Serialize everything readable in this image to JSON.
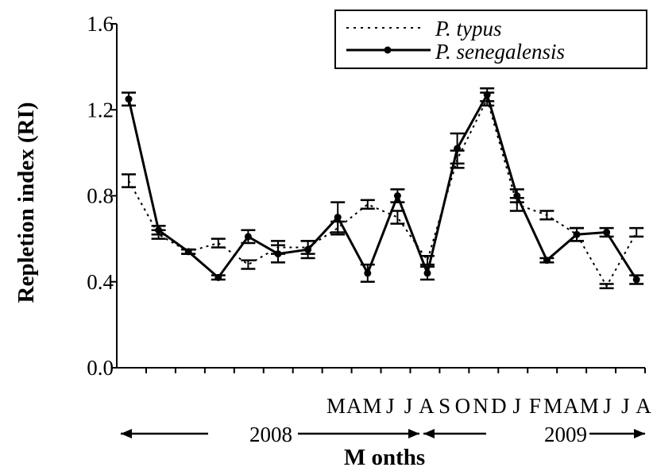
{
  "chart_data": {
    "type": "line",
    "title": "",
    "xlabel": "M onths",
    "ylabel": "Repletion index (RI)",
    "ylim": [
      0.0,
      1.6
    ],
    "yticks": [
      "0.0",
      "0.4",
      "0.8",
      "1.2",
      "1.6"
    ],
    "month_labels": [
      "M",
      "A",
      "M",
      "J",
      "J",
      "A",
      "S",
      "O",
      "N",
      "D",
      "J",
      "F",
      "M",
      "A",
      "M",
      "J",
      "J",
      "A"
    ],
    "years": [
      {
        "label": "2008",
        "arrow_start": 1,
        "arrow_end": 11
      },
      {
        "label": "2009",
        "arrow_start": 11,
        "arrow_end": 18
      }
    ],
    "grid": false,
    "legend_position": "top-right",
    "series": [
      {
        "name": "P.  typus",
        "style": "dotted",
        "values": [
          0.87,
          0.62,
          0.54,
          0.58,
          0.48,
          0.56,
          0.56,
          0.65,
          0.76,
          0.7,
          0.5,
          0.97,
          1.25,
          0.76,
          0.71,
          0.62,
          0.38,
          0.63
        ],
        "errors": [
          0.03,
          0.02,
          0.01,
          0.02,
          0.02,
          0.03,
          0.03,
          0.03,
          0.02,
          0.03,
          0.02,
          0.04,
          0.03,
          0.03,
          0.02,
          0.03,
          0.01,
          0.02
        ]
      },
      {
        "name": "P.  senegalensis",
        "style": "solid",
        "values": [
          1.25,
          0.64,
          0.54,
          0.42,
          0.61,
          0.53,
          0.55,
          0.7,
          0.44,
          0.8,
          0.44,
          1.02,
          1.27,
          0.8,
          0.5,
          0.62,
          0.63,
          0.41
        ],
        "errors": [
          0.03,
          0.02,
          0.01,
          0.01,
          0.03,
          0.04,
          0.04,
          0.07,
          0.04,
          0.03,
          0.03,
          0.07,
          0.03,
          0.03,
          0.01,
          0.03,
          0.02,
          0.02
        ]
      }
    ]
  }
}
